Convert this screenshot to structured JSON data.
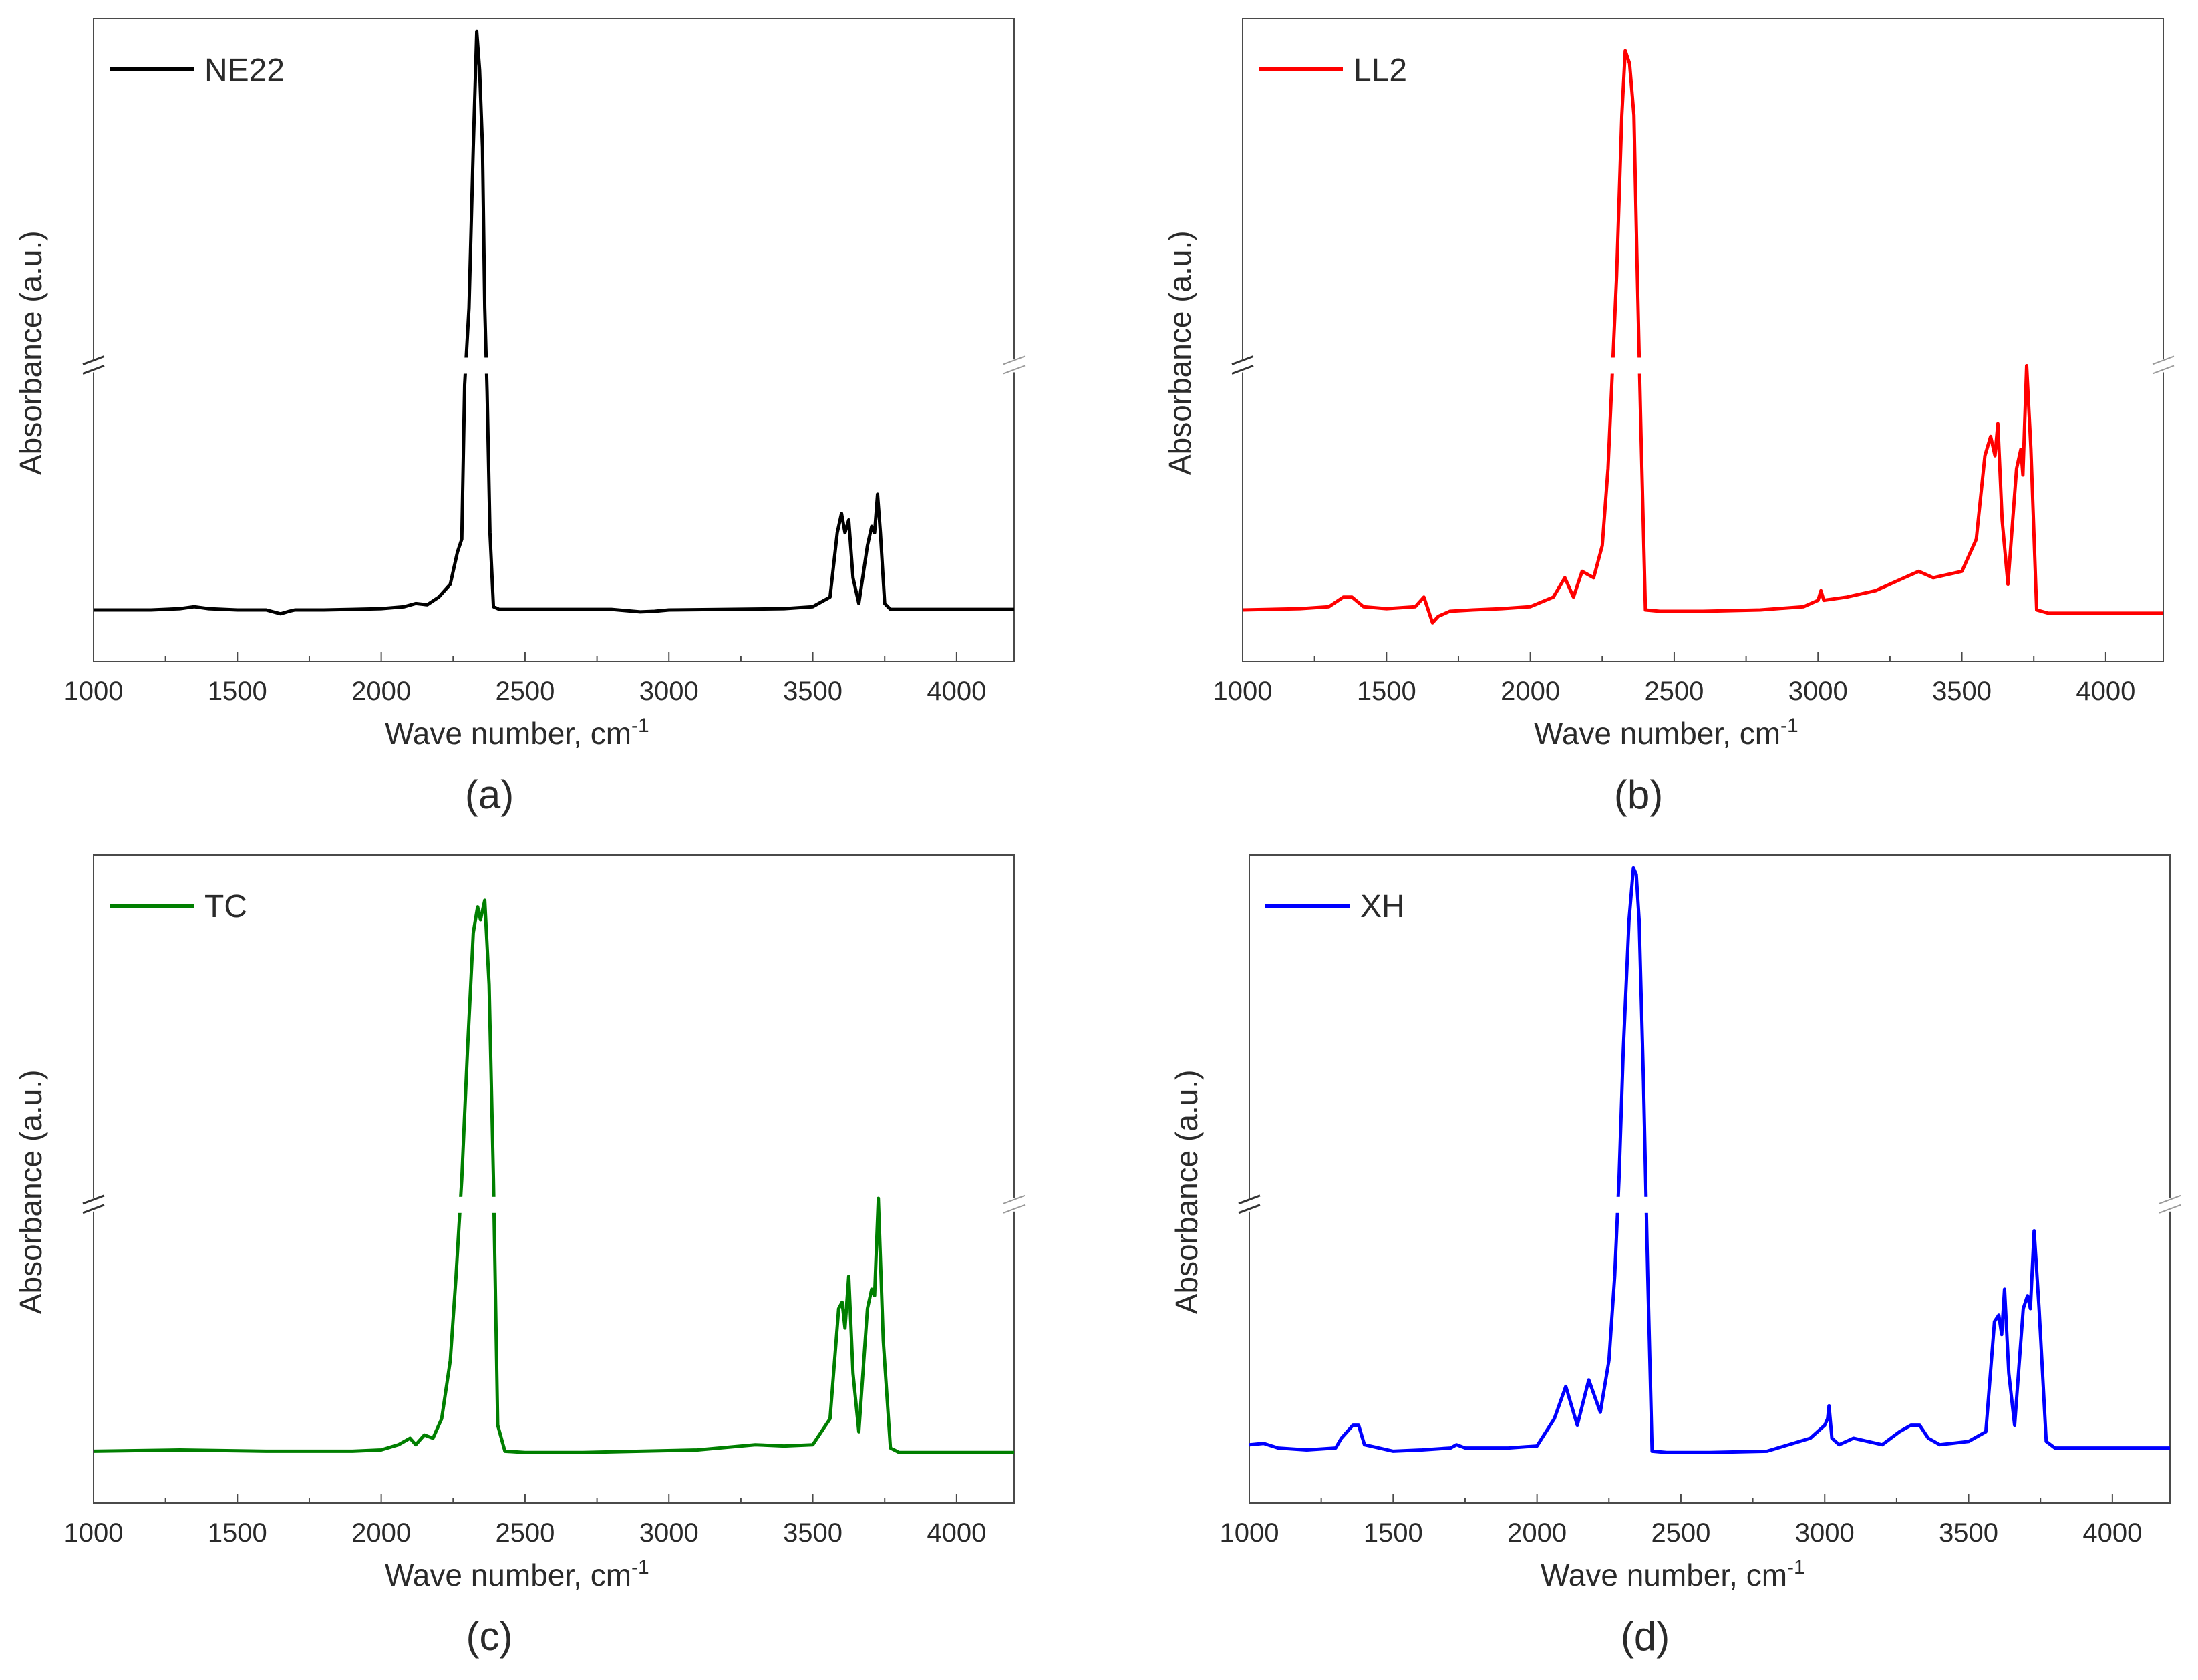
{
  "chart_data": [
    {
      "panel": "(a)",
      "type": "line",
      "legend": "NE22",
      "color": "#000000",
      "xlabel": "Wave number, cm",
      "xlabel_sup": "-1",
      "ylabel": "Absorbance (a.u.)",
      "xlim": [
        1000,
        4200
      ],
      "ylim": [
        0,
        1
      ],
      "y_axis_break": 0.46,
      "xticks": [
        "1000",
        "1500",
        "2000",
        "2500",
        "3000",
        "3500",
        "4000"
      ],
      "x": [
        1000,
        1200,
        1300,
        1350,
        1400,
        1500,
        1600,
        1650,
        1680,
        1700,
        1800,
        1900,
        2000,
        2080,
        2120,
        2160,
        2200,
        2240,
        2265,
        2280,
        2290,
        2305,
        2320,
        2332,
        2342,
        2352,
        2360,
        2368,
        2378,
        2390,
        2410,
        2450,
        2600,
        2800,
        2900,
        2950,
        3000,
        3200,
        3400,
        3500,
        3560,
        3585,
        3600,
        3612,
        3625,
        3640,
        3660,
        3690,
        3705,
        3715,
        3725,
        3735,
        3750,
        3770,
        3800,
        3900,
        4000,
        4200
      ],
      "y": [
        0.08,
        0.08,
        0.082,
        0.085,
        0.082,
        0.08,
        0.08,
        0.074,
        0.078,
        0.08,
        0.08,
        0.081,
        0.082,
        0.085,
        0.09,
        0.088,
        0.1,
        0.12,
        0.17,
        0.19,
        0.43,
        0.55,
        0.8,
        0.98,
        0.92,
        0.8,
        0.55,
        0.42,
        0.2,
        0.085,
        0.081,
        0.081,
        0.081,
        0.081,
        0.077,
        0.078,
        0.08,
        0.081,
        0.082,
        0.085,
        0.1,
        0.2,
        0.23,
        0.2,
        0.22,
        0.13,
        0.09,
        0.18,
        0.21,
        0.2,
        0.26,
        0.2,
        0.09,
        0.081,
        0.081,
        0.081,
        0.081,
        0.081
      ]
    },
    {
      "panel": "(b)",
      "type": "line",
      "legend": "LL2",
      "color": "#ff0000",
      "xlabel": "Wave number, cm",
      "xlabel_sup": "-1",
      "ylabel": "Absorbance (a.u.)",
      "xlim": [
        1000,
        4200
      ],
      "ylim": [
        0,
        1
      ],
      "y_axis_break": 0.46,
      "xticks": [
        "1000",
        "1500",
        "2000",
        "2500",
        "3000",
        "3500",
        "4000"
      ],
      "x": [
        1000,
        1200,
        1300,
        1350,
        1380,
        1420,
        1500,
        1600,
        1630,
        1660,
        1680,
        1720,
        1800,
        1900,
        2000,
        2080,
        2120,
        2150,
        2180,
        2220,
        2250,
        2270,
        2285,
        2300,
        2318,
        2330,
        2345,
        2360,
        2372,
        2385,
        2400,
        2450,
        2600,
        2800,
        2950,
        3000,
        3010,
        3020,
        3100,
        3200,
        3300,
        3350,
        3400,
        3500,
        3550,
        3580,
        3600,
        3615,
        3625,
        3640,
        3660,
        3690,
        3705,
        3712,
        3725,
        3740,
        3760,
        3800,
        3900,
        4000,
        4200
      ],
      "y": [
        0.08,
        0.082,
        0.085,
        0.1,
        0.1,
        0.085,
        0.082,
        0.085,
        0.1,
        0.06,
        0.07,
        0.078,
        0.08,
        0.082,
        0.085,
        0.1,
        0.13,
        0.1,
        0.14,
        0.13,
        0.18,
        0.3,
        0.45,
        0.6,
        0.85,
        0.95,
        0.93,
        0.85,
        0.6,
        0.35,
        0.08,
        0.078,
        0.078,
        0.08,
        0.085,
        0.095,
        0.11,
        0.095,
        0.1,
        0.11,
        0.13,
        0.14,
        0.13,
        0.14,
        0.19,
        0.32,
        0.35,
        0.32,
        0.37,
        0.22,
        0.12,
        0.3,
        0.33,
        0.29,
        0.46,
        0.33,
        0.08,
        0.075,
        0.075,
        0.075,
        0.075
      ]
    },
    {
      "panel": "(c)",
      "type": "line",
      "legend": "TC",
      "color": "#007f00",
      "xlabel": "Wave number, cm",
      "xlabel_sup": "-1",
      "ylabel": "Absorbance (a.u.)",
      "xlim": [
        1000,
        4200
      ],
      "ylim": [
        0,
        1
      ],
      "y_axis_break": 0.46,
      "xticks": [
        "1000",
        "1500",
        "2000",
        "2500",
        "3000",
        "3500",
        "4000"
      ],
      "x": [
        1000,
        1300,
        1600,
        1900,
        2000,
        2060,
        2100,
        2120,
        2150,
        2180,
        2210,
        2240,
        2260,
        2280,
        2300,
        2320,
        2335,
        2345,
        2360,
        2375,
        2390,
        2405,
        2430,
        2500,
        2700,
        2900,
        3100,
        3300,
        3400,
        3500,
        3560,
        3590,
        3602,
        3612,
        3625,
        3640,
        3660,
        3690,
        3705,
        3715,
        3728,
        3745,
        3770,
        3800,
        4000,
        4200
      ],
      "y": [
        0.08,
        0.082,
        0.08,
        0.08,
        0.082,
        0.09,
        0.1,
        0.09,
        0.105,
        0.1,
        0.13,
        0.22,
        0.35,
        0.5,
        0.7,
        0.88,
        0.92,
        0.9,
        0.93,
        0.8,
        0.5,
        0.12,
        0.08,
        0.078,
        0.078,
        0.08,
        0.082,
        0.09,
        0.088,
        0.09,
        0.13,
        0.3,
        0.31,
        0.27,
        0.35,
        0.2,
        0.11,
        0.3,
        0.33,
        0.32,
        0.47,
        0.25,
        0.085,
        0.078,
        0.078,
        0.078
      ]
    },
    {
      "panel": "(d)",
      "type": "line",
      "legend": "XH",
      "color": "#0000ff",
      "xlabel": "Wave number, cm",
      "xlabel_sup": "-1",
      "ylabel": "Absorbance (a.u.)",
      "xlim": [
        1000,
        4200
      ],
      "ylim": [
        0,
        1
      ],
      "y_axis_break": 0.46,
      "xticks": [
        "1000",
        "1500",
        "2000",
        "2500",
        "3000",
        "3500",
        "4000"
      ],
      "x": [
        1000,
        1050,
        1100,
        1200,
        1300,
        1320,
        1340,
        1360,
        1380,
        1400,
        1500,
        1600,
        1700,
        1720,
        1750,
        1900,
        2000,
        2060,
        2100,
        2120,
        2140,
        2180,
        2220,
        2250,
        2270,
        2285,
        2300,
        2320,
        2335,
        2345,
        2355,
        2370,
        2385,
        2400,
        2450,
        2600,
        2800,
        2950,
        3000,
        3010,
        3015,
        3025,
        3050,
        3100,
        3200,
        3260,
        3300,
        3330,
        3360,
        3400,
        3500,
        3560,
        3590,
        3605,
        3615,
        3625,
        3640,
        3660,
        3690,
        3705,
        3715,
        3728,
        3745,
        3770,
        3800,
        4000,
        4200
      ],
      "y": [
        0.09,
        0.092,
        0.085,
        0.082,
        0.085,
        0.1,
        0.11,
        0.12,
        0.12,
        0.09,
        0.08,
        0.082,
        0.085,
        0.09,
        0.085,
        0.085,
        0.088,
        0.13,
        0.18,
        0.15,
        0.12,
        0.19,
        0.14,
        0.22,
        0.35,
        0.5,
        0.7,
        0.9,
        0.98,
        0.97,
        0.9,
        0.65,
        0.35,
        0.08,
        0.078,
        0.078,
        0.08,
        0.1,
        0.12,
        0.13,
        0.15,
        0.1,
        0.09,
        0.1,
        0.09,
        0.11,
        0.12,
        0.12,
        0.1,
        0.09,
        0.095,
        0.11,
        0.28,
        0.29,
        0.26,
        0.33,
        0.2,
        0.12,
        0.3,
        0.32,
        0.3,
        0.42,
        0.3,
        0.095,
        0.085,
        0.085,
        0.085
      ]
    }
  ]
}
